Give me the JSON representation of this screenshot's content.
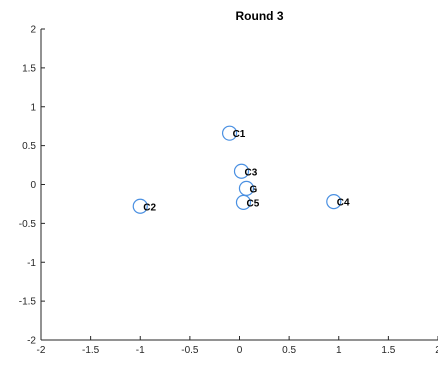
{
  "chart_data": {
    "type": "scatter",
    "title": "Round 3",
    "xlabel": "",
    "ylabel": "",
    "xlim": [
      -2,
      2
    ],
    "ylim": [
      -2,
      2
    ],
    "x_ticks": [
      -2,
      -1.5,
      -1,
      -0.5,
      0,
      0.5,
      1,
      1.5,
      2
    ],
    "x_tick_labels": [
      "-2",
      "-1.5",
      "-1",
      "-0.5",
      "0",
      "0.5",
      "1",
      "1.5",
      "2"
    ],
    "y_ticks": [
      2,
      1.5,
      1,
      0.5,
      0,
      -0.5,
      -1,
      -1.5,
      -2
    ],
    "y_tick_labels": [
      "2",
      "1.5",
      "1",
      "0.5",
      "0",
      "-0.5",
      "-1",
      "-1.5",
      "-2"
    ],
    "grid": false,
    "marker": "circle-open",
    "marker_color": "#4a90e2",
    "points": [
      {
        "label": "C1",
        "x": -0.1,
        "y": 0.66
      },
      {
        "label": "C3",
        "x": 0.02,
        "y": 0.17
      },
      {
        "label": "G",
        "x": 0.07,
        "y": -0.05
      },
      {
        "label": "C5",
        "x": 0.04,
        "y": -0.23
      },
      {
        "label": "C2",
        "x": -1.0,
        "y": -0.28
      },
      {
        "label": "C4",
        "x": 0.95,
        "y": -0.22
      }
    ]
  }
}
